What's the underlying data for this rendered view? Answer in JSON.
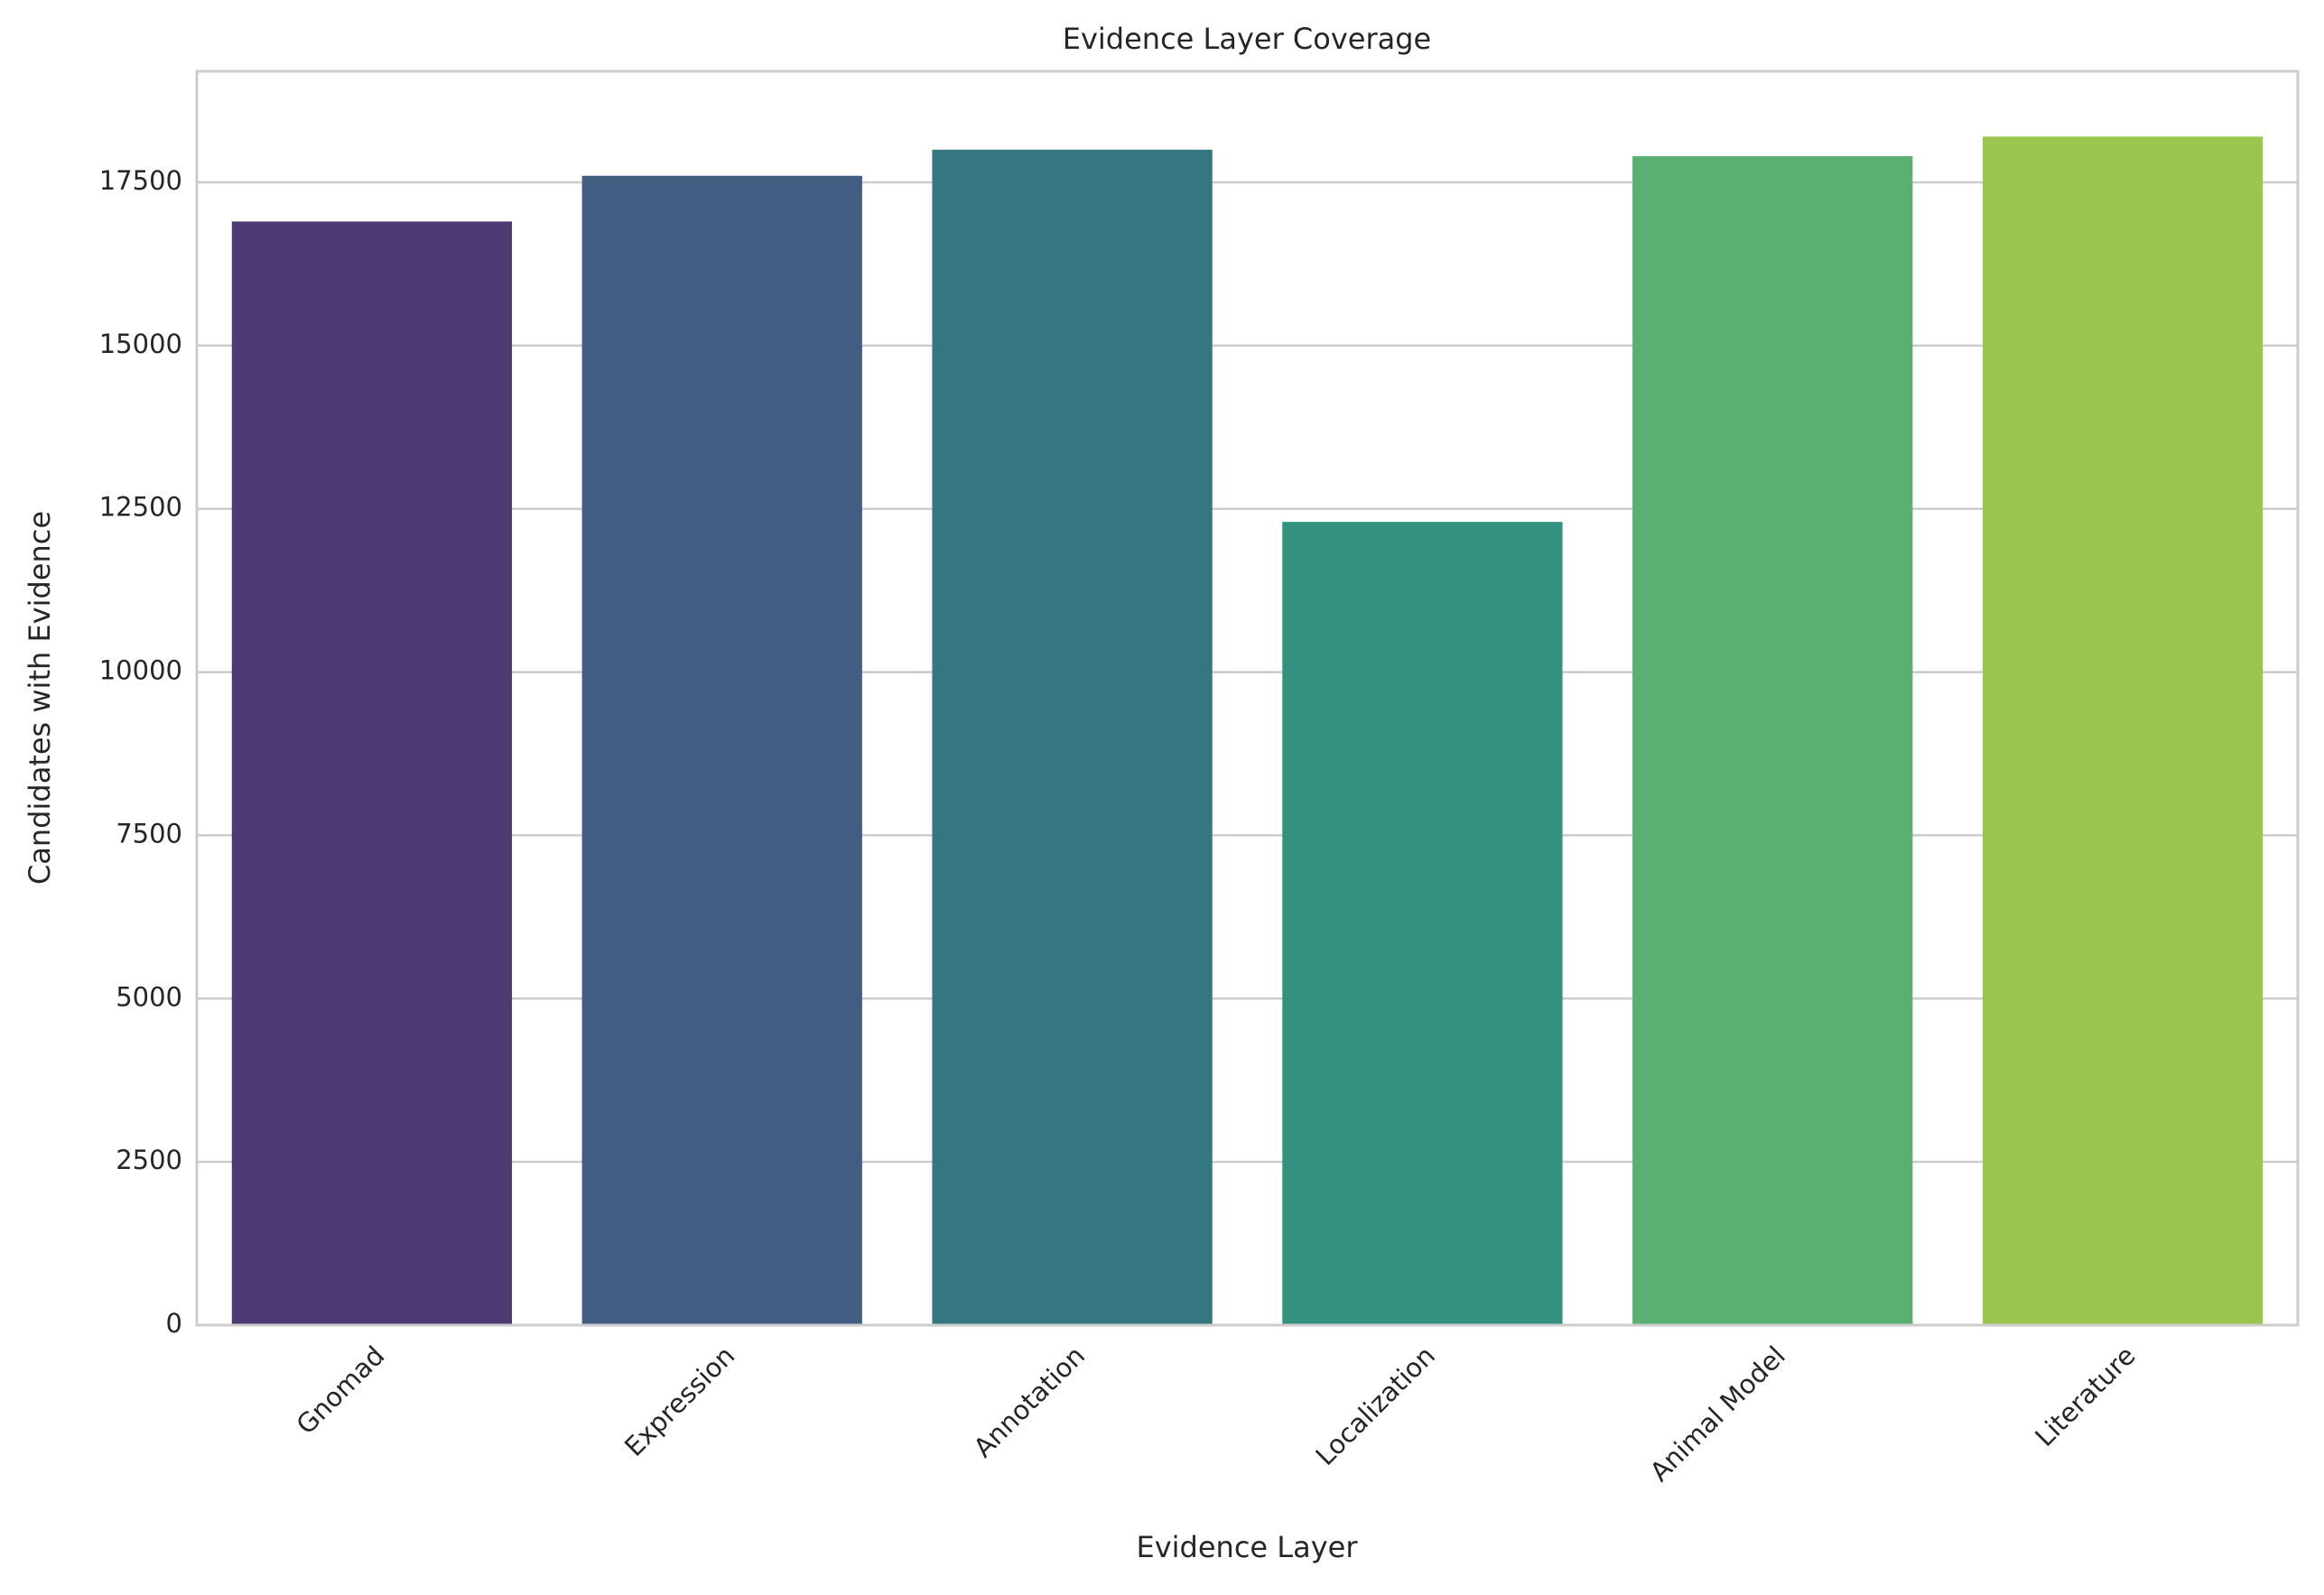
{
  "chart_data": {
    "type": "bar",
    "title": "Evidence Layer Coverage",
    "x_label": "Evidence Layer",
    "y_label": "Candidates with Evidence",
    "categories": [
      "Gnomad",
      "Expression",
      "Annotation",
      "Localization",
      "Animal Model",
      "Literature"
    ],
    "values": [
      16900,
      17600,
      18000,
      12300,
      17900,
      18200
    ],
    "colors": [
      "#4b3b72",
      "#415e82",
      "#357780",
      "#33917f",
      "#5aaf72",
      "#9ac54e"
    ],
    "ylim": [
      0,
      19200
    ],
    "yticks": [
      0,
      2500,
      5000,
      7500,
      10000,
      12500,
      15000,
      17500
    ],
    "grid": true
  }
}
